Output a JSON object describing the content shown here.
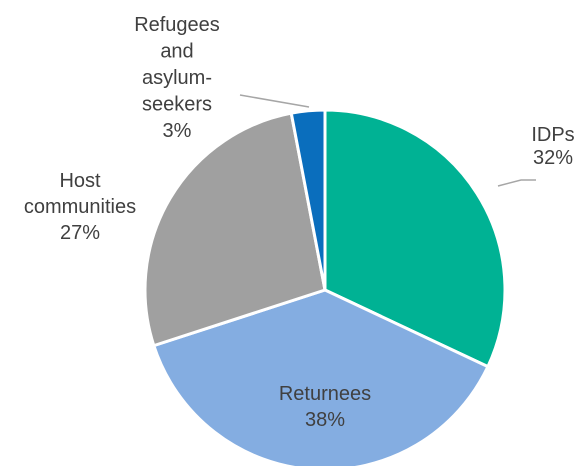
{
  "chart_data": {
    "type": "pie",
    "title": "",
    "slices": [
      {
        "label": "IDPs",
        "value": 32,
        "value_label": "32%",
        "color": "#00B294",
        "label_lines": [
          "IDPs",
          "32%"
        ]
      },
      {
        "label": "Returnees",
        "value": 38,
        "value_label": "38%",
        "color": "#84ADE1",
        "label_lines": [
          "Returnees",
          "38%"
        ]
      },
      {
        "label": "Host communities",
        "value": 27,
        "value_label": "27%",
        "color": "#A0A0A0",
        "label_lines": [
          "Host",
          "communities",
          "27%"
        ]
      },
      {
        "label": "Refugees and asylum-seekers",
        "value": 3,
        "value_label": "3%",
        "color": "#0A6EBD",
        "label_lines": [
          "Refugees",
          "and",
          "asylum-",
          "seekers",
          "3%"
        ]
      }
    ],
    "start_angle_deg": 0,
    "direction": "clockwise",
    "legend": "none"
  }
}
